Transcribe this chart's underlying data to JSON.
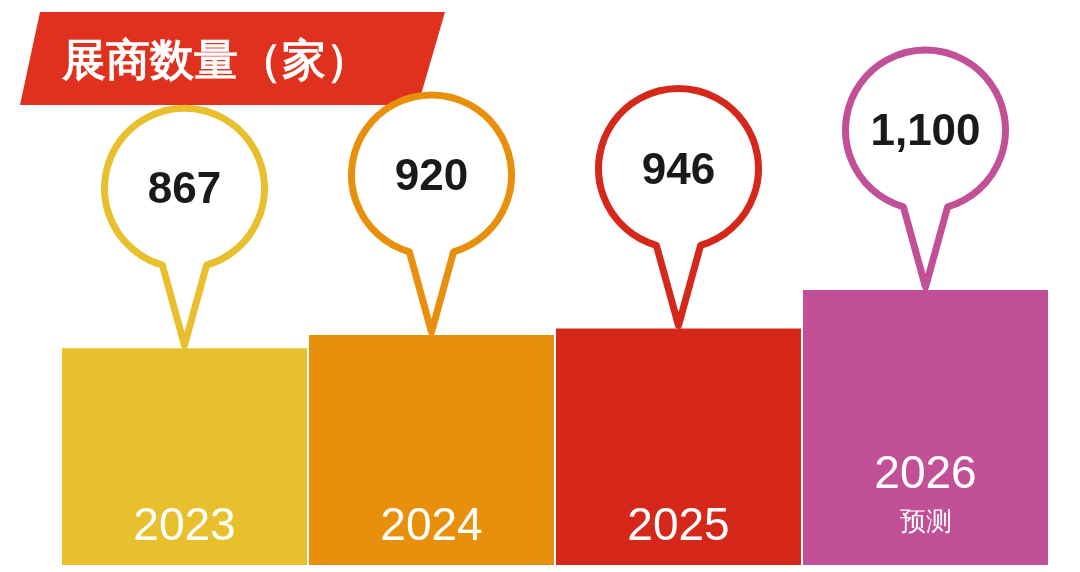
{
  "chart_data": {
    "type": "bar",
    "title": "展商数量（家）",
    "categories": [
      "2023",
      "2024",
      "2025",
      "2026\n预测"
    ],
    "values": [
      867,
      920,
      946,
      1100
    ],
    "colors": [
      "#e8bf2c",
      "#e8900c",
      "#d6281a",
      "#c25096"
    ],
    "value_labels": [
      "867",
      "920",
      "946",
      "1,100"
    ]
  }
}
